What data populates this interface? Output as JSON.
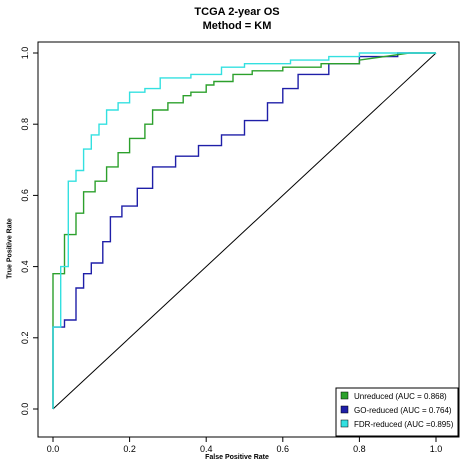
{
  "chart_data": {
    "type": "line",
    "title": "TCGA 2-year OS",
    "subtitle": "Method = KM",
    "xlabel": "False Positive Rate",
    "ylabel": "True Positive Rate",
    "xlim": [
      0,
      1
    ],
    "ylim": [
      0,
      1
    ],
    "xticks": [
      "0.0",
      "0.2",
      "0.4",
      "0.6",
      "0.8",
      "1.0"
    ],
    "yticks": [
      "0.0",
      "0.2",
      "0.4",
      "0.6",
      "0.8",
      "1.0"
    ],
    "legend_position": "bottom-right",
    "diagonal": true,
    "series": [
      {
        "name": "Unreduced (AUC = 0.868)",
        "color": "#2ca02c",
        "x": [
          0,
          0,
          0.03,
          0.03,
          0.06,
          0.06,
          0.08,
          0.08,
          0.11,
          0.11,
          0.14,
          0.14,
          0.17,
          0.17,
          0.2,
          0.2,
          0.24,
          0.24,
          0.26,
          0.26,
          0.3,
          0.3,
          0.34,
          0.34,
          0.36,
          0.36,
          0.4,
          0.4,
          0.42,
          0.42,
          0.47,
          0.47,
          0.52,
          0.52,
          0.6,
          0.6,
          0.7,
          0.7,
          0.8,
          0.8,
          0.93,
          1.0
        ],
        "y": [
          0,
          0.38,
          0.38,
          0.49,
          0.49,
          0.55,
          0.55,
          0.61,
          0.61,
          0.64,
          0.64,
          0.68,
          0.68,
          0.72,
          0.72,
          0.76,
          0.76,
          0.8,
          0.8,
          0.84,
          0.84,
          0.86,
          0.86,
          0.88,
          0.88,
          0.89,
          0.89,
          0.91,
          0.91,
          0.92,
          0.92,
          0.94,
          0.94,
          0.95,
          0.95,
          0.96,
          0.96,
          0.97,
          0.97,
          0.98,
          1.0,
          1.0
        ]
      },
      {
        "name": "GO-reduced (AUC = 0.764)",
        "color": "#1f1fa8",
        "x": [
          0,
          0,
          0.03,
          0.03,
          0.06,
          0.06,
          0.08,
          0.08,
          0.1,
          0.1,
          0.13,
          0.13,
          0.15,
          0.15,
          0.18,
          0.18,
          0.22,
          0.22,
          0.26,
          0.26,
          0.32,
          0.32,
          0.38,
          0.38,
          0.44,
          0.44,
          0.5,
          0.5,
          0.56,
          0.56,
          0.6,
          0.6,
          0.64,
          0.64,
          0.72,
          0.72,
          0.8,
          0.8,
          0.9,
          0.9,
          1.0
        ],
        "y": [
          0,
          0.23,
          0.23,
          0.25,
          0.25,
          0.34,
          0.34,
          0.38,
          0.38,
          0.41,
          0.41,
          0.47,
          0.47,
          0.54,
          0.54,
          0.57,
          0.57,
          0.62,
          0.62,
          0.68,
          0.68,
          0.71,
          0.71,
          0.74,
          0.74,
          0.77,
          0.77,
          0.81,
          0.81,
          0.86,
          0.86,
          0.9,
          0.9,
          0.94,
          0.94,
          0.97,
          0.97,
          0.99,
          0.99,
          1.0,
          1.0
        ]
      },
      {
        "name": "FDR-reduced (AUC =0.895)",
        "color": "#33e0e0",
        "x": [
          0,
          0,
          0.02,
          0.02,
          0.04,
          0.04,
          0.06,
          0.06,
          0.08,
          0.08,
          0.1,
          0.1,
          0.12,
          0.12,
          0.14,
          0.14,
          0.17,
          0.17,
          0.2,
          0.2,
          0.24,
          0.24,
          0.28,
          0.28,
          0.36,
          0.36,
          0.44,
          0.44,
          0.5,
          0.5,
          0.62,
          0.62,
          0.72,
          0.72,
          0.8,
          0.8,
          0.9,
          1.0
        ],
        "y": [
          0,
          0.23,
          0.23,
          0.4,
          0.4,
          0.64,
          0.64,
          0.67,
          0.67,
          0.73,
          0.73,
          0.77,
          0.77,
          0.8,
          0.8,
          0.84,
          0.84,
          0.86,
          0.86,
          0.89,
          0.89,
          0.9,
          0.9,
          0.93,
          0.93,
          0.94,
          0.94,
          0.96,
          0.96,
          0.97,
          0.97,
          0.98,
          0.98,
          0.99,
          0.99,
          1.0,
          1.0,
          1.0
        ]
      }
    ]
  }
}
